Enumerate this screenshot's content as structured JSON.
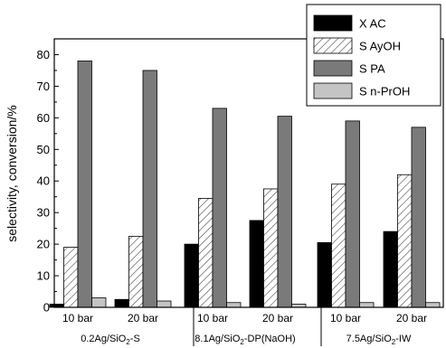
{
  "chart_data": {
    "type": "bar",
    "ylabel": "selectivity, conversion/%",
    "ylim": [
      0,
      85
    ],
    "yticks": [
      0,
      10,
      20,
      30,
      40,
      50,
      60,
      70,
      80
    ],
    "groups": [
      {
        "name_main": "0.2Ag/SiO",
        "name_sub": "2",
        "name_rest": "-S",
        "categories": [
          "10 bar",
          "20 bar"
        ]
      },
      {
        "name_main": "8.1Ag/SiO",
        "name_sub": "2",
        "name_rest": "-DP(NaOH)",
        "categories": [
          "10 bar",
          "20 bar"
        ]
      },
      {
        "name_main": "7.5Ag/SiO",
        "name_sub": "2",
        "name_rest": "-IW",
        "categories": [
          "10 bar",
          "20 bar"
        ]
      }
    ],
    "series": [
      {
        "name": "X AC",
        "color": "#000000",
        "pattern": "solid",
        "values": [
          1.0,
          2.5,
          20.0,
          27.5,
          20.5,
          24.0
        ]
      },
      {
        "name": "S AyOH",
        "color": "#ffffff",
        "pattern": "hatch",
        "values": [
          19.0,
          22.5,
          34.5,
          37.5,
          39.0,
          42.0
        ]
      },
      {
        "name": "S PA",
        "color": "#7a7a7a",
        "pattern": "solid",
        "values": [
          78.0,
          75.0,
          63.0,
          60.5,
          59.0,
          57.0
        ]
      },
      {
        "name": "S n-PrOH",
        "color": "#c4c4c4",
        "pattern": "solid",
        "values": [
          3.0,
          2.0,
          1.5,
          1.0,
          1.5,
          1.5
        ]
      }
    ],
    "legend_position": "top-right"
  }
}
